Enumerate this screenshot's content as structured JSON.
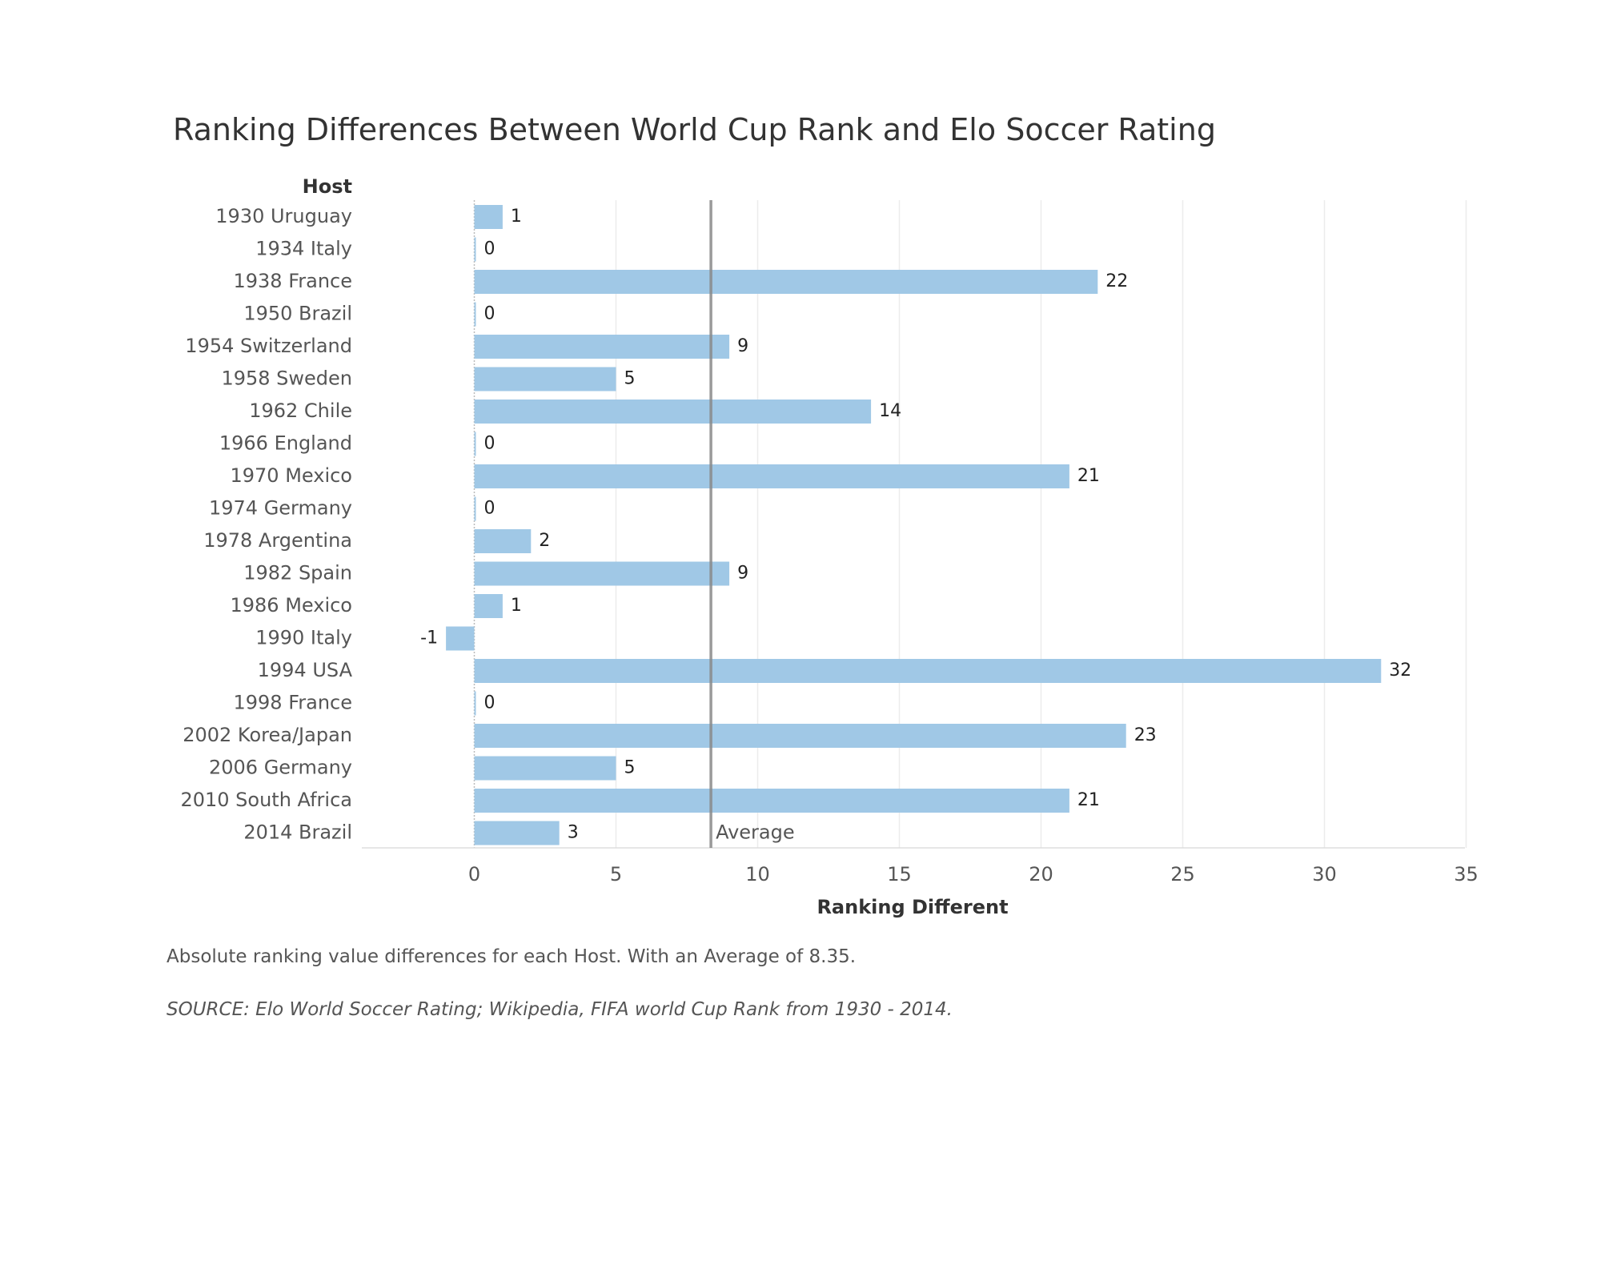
{
  "chart_data": {
    "type": "bar",
    "orientation": "horizontal",
    "title": "Ranking Differences Between World Cup Rank and Elo Soccer Rating",
    "row_header": "Host",
    "xlabel": "Ranking Different",
    "categories": [
      "1930 Uruguay",
      "1934 Italy",
      "1938 France",
      "1950 Brazil",
      "1954 Switzerland",
      "1958 Sweden",
      "1962 Chile",
      "1966 England",
      "1970 Mexico",
      "1974 Germany",
      "1978 Argentina",
      "1982 Spain",
      "1986 Mexico",
      "1990 Italy",
      "1994 USA",
      "1998 France",
      "2002 Korea/Japan",
      "2006 Germany",
      "2010 South Africa",
      "2014 Brazil"
    ],
    "values": [
      1,
      0,
      22,
      0,
      9,
      5,
      14,
      0,
      21,
      0,
      2,
      9,
      1,
      -1,
      32,
      0,
      23,
      5,
      21,
      3
    ],
    "data_labels": [
      "1",
      "0",
      "22",
      "0",
      "9",
      "5",
      "14",
      "0",
      "21",
      "0",
      "2",
      "9",
      "1",
      "-1",
      "32",
      "0",
      "23",
      "5",
      "21",
      "3"
    ],
    "xlim": [
      -4,
      35
    ],
    "xticks": [
      0,
      5,
      10,
      15,
      20,
      25,
      30,
      35
    ],
    "xtick_labels": [
      "0",
      "5",
      "10",
      "15",
      "20",
      "25",
      "30",
      "35"
    ],
    "reference_line": {
      "label": "Average",
      "value": 8.35
    },
    "grid": true,
    "legend": "none",
    "colors": {
      "bar": "#a0c8e6",
      "reference_line": "#888888",
      "grid": "#ececec"
    }
  },
  "caption": "Absolute ranking value differences for each Host. With an Average of 8.35.",
  "source": "SOURCE: Elo World Soccer Rating; Wikipedia, FIFA world Cup Rank from 1930 - 2014."
}
